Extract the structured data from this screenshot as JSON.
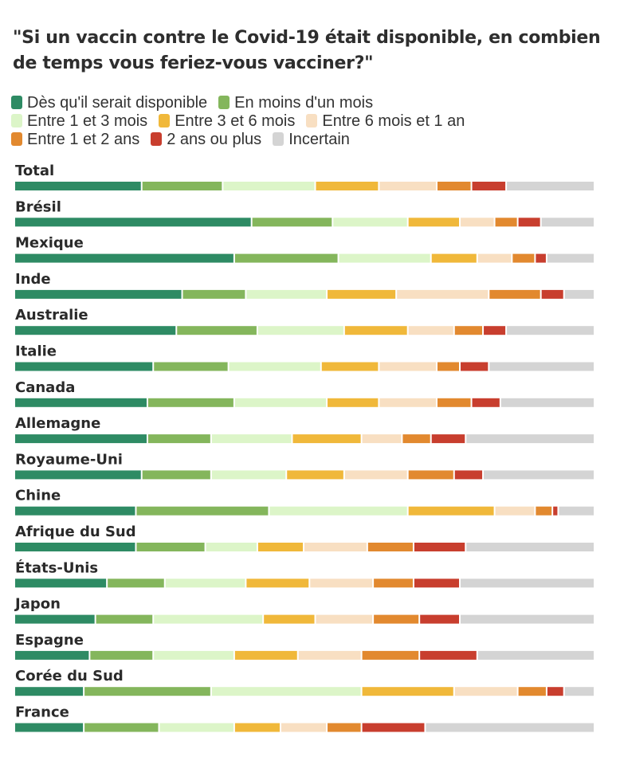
{
  "chart_data": {
    "type": "bar",
    "stacked": true,
    "orientation": "horizontal",
    "title": "\"Si un vaccin contre le Covid-19 était disponible, en combien de temps vous feriez-vous vacciner?\"",
    "categories": [
      "Total",
      "Brésil",
      "Mexique",
      "Inde",
      "Australie",
      "Italie",
      "Canada",
      "Allemagne",
      "Royaume-Uni",
      "Chine",
      "Afrique du Sud",
      "États-Unis",
      "Japon",
      "Espagne",
      "Corée du Sud",
      "France"
    ],
    "xlim": [
      0,
      100
    ],
    "grid": false,
    "legend_position": "top",
    "series": [
      {
        "name": "Dès qu'il serait disponible",
        "color": "#2e8b64",
        "values": [
          22,
          41,
          38,
          29,
          28,
          24,
          23,
          23,
          22,
          21,
          21,
          16,
          14,
          13,
          12,
          12
        ]
      },
      {
        "name": "En moins d'un mois",
        "color": "#84b65c",
        "values": [
          14,
          14,
          18,
          11,
          14,
          13,
          15,
          11,
          12,
          23,
          12,
          10,
          10,
          11,
          22,
          13
        ]
      },
      {
        "name": "Entre 1 et 3 mois",
        "color": "#dcf5c8",
        "values": [
          16,
          13,
          16,
          14,
          15,
          16,
          16,
          14,
          13,
          24,
          9,
          14,
          19,
          14,
          26,
          13
        ]
      },
      {
        "name": "Entre 3 et 6 mois",
        "color": "#f0b83a",
        "values": [
          11,
          9,
          8,
          12,
          11,
          10,
          9,
          12,
          10,
          15,
          8,
          11,
          9,
          11,
          16,
          8
        ]
      },
      {
        "name": "Entre 6 mois et 1 an",
        "color": "#f8dfc2",
        "values": [
          10,
          6,
          6,
          16,
          8,
          10,
          10,
          7,
          11,
          7,
          11,
          11,
          10,
          11,
          11,
          8
        ]
      },
      {
        "name": "Entre 1 et 2 ans",
        "color": "#e2892f",
        "values": [
          6,
          4,
          4,
          9,
          5,
          4,
          6,
          5,
          8,
          3,
          8,
          7,
          8,
          10,
          5,
          6
        ]
      },
      {
        "name": "2 ans ou plus",
        "color": "#c83e2e",
        "values": [
          6,
          4,
          2,
          4,
          4,
          5,
          5,
          6,
          5,
          1,
          9,
          8,
          7,
          10,
          3,
          11
        ]
      },
      {
        "name": "Incertain",
        "color": "#d4d4d4",
        "values": [
          15,
          9,
          8,
          5,
          15,
          18,
          16,
          22,
          19,
          6,
          22,
          23,
          23,
          20,
          5,
          29
        ]
      }
    ]
  }
}
